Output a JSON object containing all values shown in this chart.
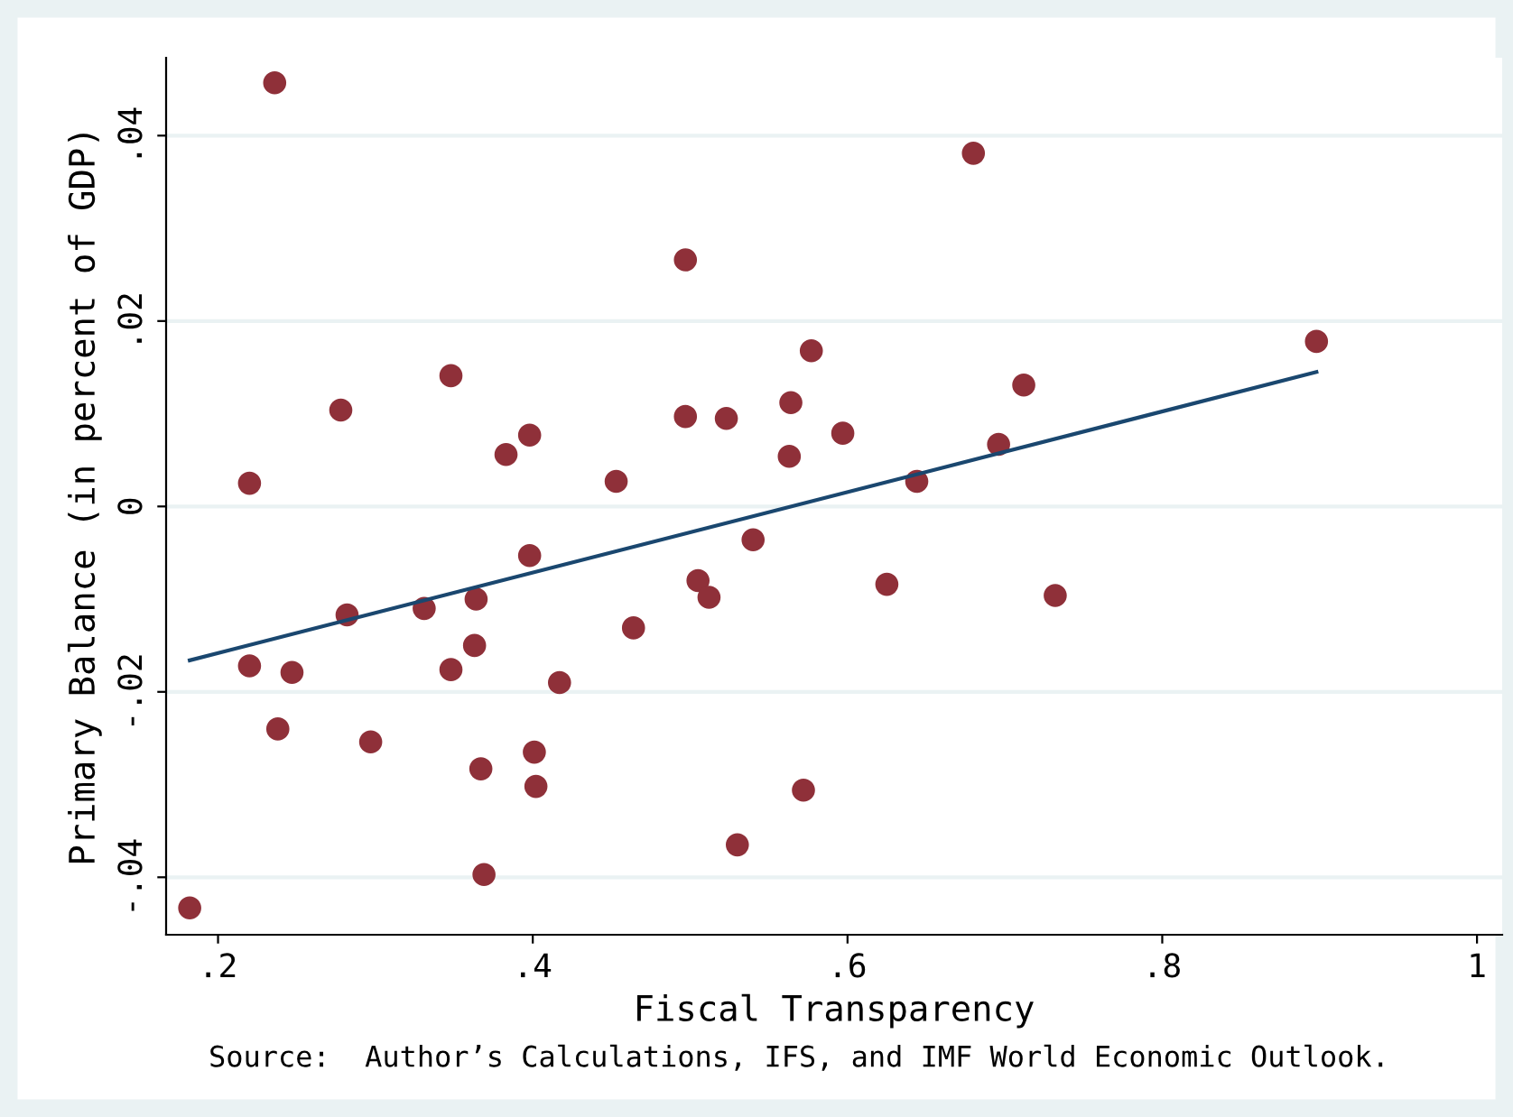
{
  "chart_data": {
    "type": "scatter",
    "xlabel": "Fiscal Transparency",
    "ylabel": "Primary Balance (in percent of GDP)",
    "annotations": [
      "Source:  Author’s Calculations, IFS, and IMF World Economic Outlook."
    ],
    "series": [
      {
        "color": "#8f3039",
        "marker": "circle",
        "x": [
          0.182,
          0.236,
          0.22,
          0.22,
          0.247,
          0.238,
          0.278,
          0.282,
          0.297,
          0.331,
          0.348,
          0.348,
          0.364,
          0.363,
          0.367,
          0.369,
          0.383,
          0.398,
          0.398,
          0.401,
          0.402,
          0.417,
          0.453,
          0.464,
          0.497,
          0.497,
          0.505,
          0.512,
          0.523,
          0.53,
          0.54,
          0.563,
          0.564,
          0.572,
          0.577,
          0.597,
          0.644,
          0.625,
          0.68,
          0.696,
          0.712,
          0.732,
          0.898
        ],
        "values": [
          -0.0433,
          0.0457,
          0.0025,
          -0.0172,
          -0.0179,
          -0.024,
          0.0104,
          -0.0117,
          -0.0254,
          -0.011,
          0.0141,
          -0.0176,
          -0.01,
          -0.015,
          -0.0283,
          -0.0397,
          0.0056,
          0.0077,
          -0.0053,
          -0.0265,
          -0.0302,
          -0.019,
          0.0027,
          -0.0131,
          0.0266,
          0.0097,
          -0.008,
          -0.0098,
          0.0095,
          -0.0365,
          -0.0036,
          0.0054,
          0.0112,
          -0.0306,
          0.0168,
          0.0079,
          0.0027,
          -0.0084,
          0.0381,
          0.0067,
          0.0131,
          -0.0096,
          0.0178
        ]
      },
      {
        "type": "line",
        "color": "#1a476f",
        "marker": "none",
        "line_style": "solid",
        "x": [
          0.182,
          0.898
        ],
        "values": [
          -0.0166,
          0.0145
        ]
      }
    ],
    "xlim": [
      0.167,
      1.016
    ],
    "ylim": [
      -0.0462,
      0.0484
    ],
    "xticks": [
      {
        "value": 0.2,
        "label": ".2"
      },
      {
        "value": 0.4,
        "label": ".4"
      },
      {
        "value": 0.6,
        "label": ".6"
      },
      {
        "value": 0.8,
        "label": ".8"
      },
      1
    ],
    "yticks": [
      {
        "value": -0.04,
        "label": "-.04"
      },
      {
        "value": -0.02,
        "label": "-.02"
      },
      0,
      {
        "value": 0.02,
        "label": ".02"
      },
      {
        "value": 0.04,
        "label": ".04"
      }
    ],
    "grid": "y",
    "legend": false
  }
}
